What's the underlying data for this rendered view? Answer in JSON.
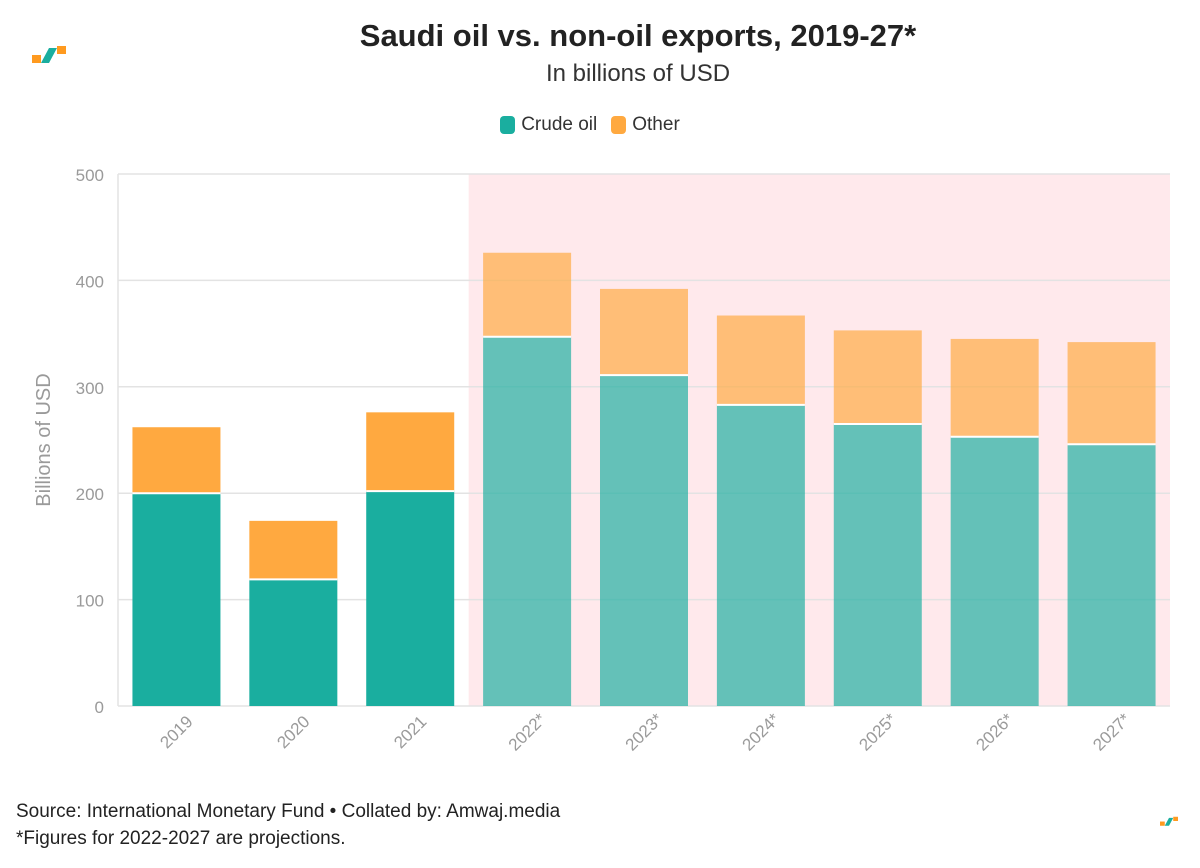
{
  "header": {
    "title": "Saudi oil vs. non-oil exports, 2019-27*",
    "subtitle": "In billions of USD"
  },
  "footer": {
    "source": "Source: International Monetary Fund • Collated by: Amwaj.media",
    "note": "*Figures for 2022-2027 are projections."
  },
  "colors": {
    "crude": "#1aae9f",
    "other": "#ffa940",
    "projection_band": "#ffe9ec",
    "logo_teal": "#1aae9f",
    "logo_orange": "#ff9a1f"
  },
  "chart_data": {
    "type": "bar",
    "stacked": true,
    "title": "Saudi oil vs. non-oil exports, 2019-27*",
    "subtitle": "In billions of USD",
    "ylabel": "Billions of USD",
    "xlabel": "",
    "ylim": [
      0,
      500
    ],
    "yticks": [
      0,
      100,
      200,
      300,
      400,
      500
    ],
    "grid": true,
    "legend_position": "top-center",
    "categories": [
      "2019",
      "2020",
      "2021",
      "2022*",
      "2023*",
      "2024*",
      "2025*",
      "2026*",
      "2027*"
    ],
    "projected_from_index": 3,
    "series": [
      {
        "name": "Crude oil",
        "values": [
          200,
          119,
          202,
          347,
          311,
          283,
          265,
          253,
          246
        ]
      },
      {
        "name": "Other",
        "values": [
          62,
          55,
          74,
          79,
          81,
          84,
          88,
          92,
          96
        ]
      }
    ]
  }
}
